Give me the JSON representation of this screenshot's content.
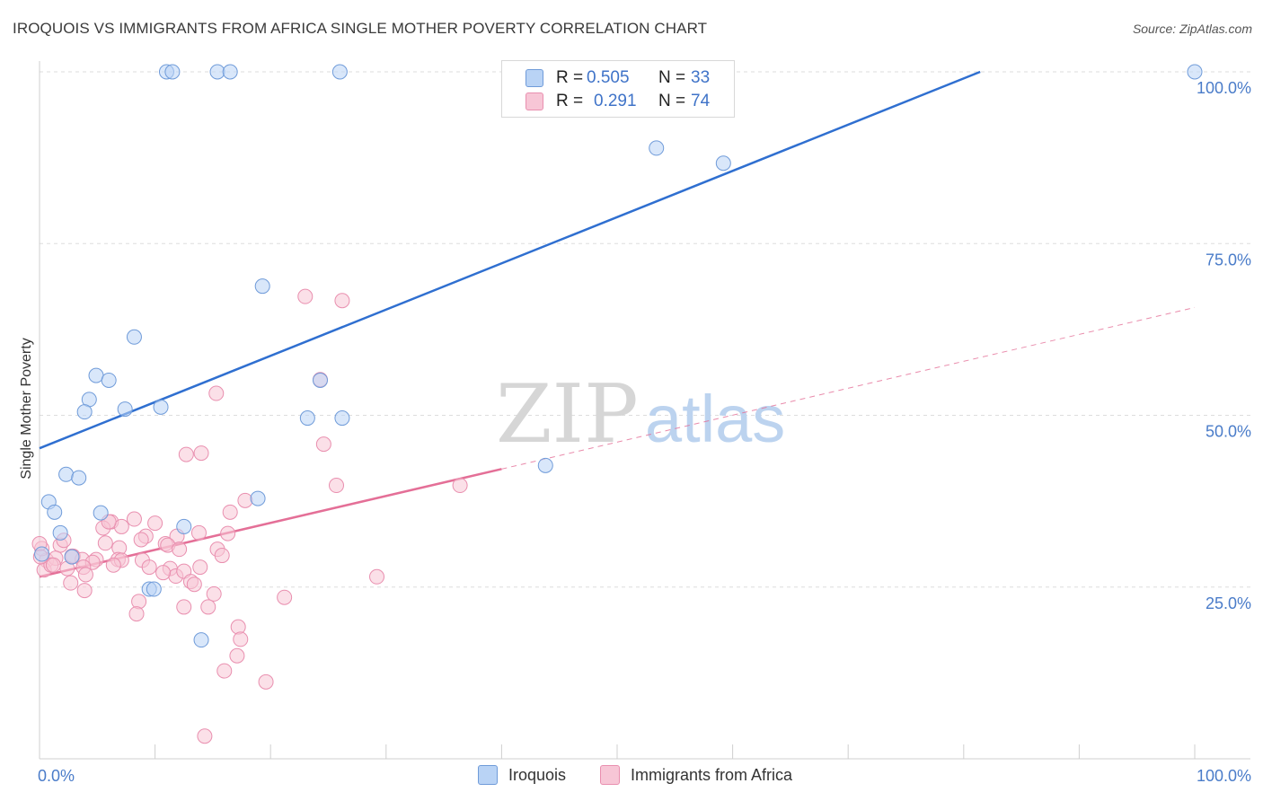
{
  "title": "IROQUOIS VS IMMIGRANTS FROM AFRICA SINGLE MOTHER POVERTY CORRELATION CHART",
  "source": "Source: ZipAtlas.com",
  "watermark": {
    "zip": "ZIP",
    "atlas": "atlas"
  },
  "colors": {
    "blue_fill": "#b9d3f5",
    "blue_stroke": "#6f9bd9",
    "blue_line": "#2f6fd0",
    "pink_fill": "#f7c6d6",
    "pink_stroke": "#e98faf",
    "pink_line": "#e46f97",
    "grid": "#dddddd",
    "tick_text": "#4a7cc9"
  },
  "legend": [
    {
      "label": "R =",
      "r_value": "0.505",
      "n_label": "N =",
      "n_value": "33"
    },
    {
      "label": "R =",
      "r_value": "0.291",
      "n_label": "N =",
      "n_value": "74"
    }
  ],
  "chart_data": {
    "type": "scatter",
    "title": "IROQUOIS VS IMMIGRANTS FROM AFRICA SINGLE MOTHER POVERTY CORRELATION CHART",
    "xlabel": "",
    "ylabel": "Single Mother Poverty",
    "xlim": [
      0,
      100
    ],
    "ylim": [
      0,
      100
    ],
    "x_tick_labels": [
      "0.0%",
      "100.0%"
    ],
    "y_tick_labels": [
      "25.0%",
      "50.0%",
      "75.0%",
      "100.0%"
    ],
    "y_ticks": [
      25,
      50,
      75,
      100
    ],
    "grid": true,
    "series": [
      {
        "name": "Iroquois",
        "color": "blue",
        "trend": {
          "x": [
            0,
            100
          ],
          "y": [
            45.2,
            112.5
          ],
          "dashed_from": null
        },
        "points": [
          [
            11,
            100
          ],
          [
            11.5,
            100
          ],
          [
            15.4,
            100
          ],
          [
            16.5,
            100
          ],
          [
            26,
            100
          ],
          [
            100,
            100
          ],
          [
            53.4,
            88.9
          ],
          [
            59.2,
            86.7
          ],
          [
            19.3,
            68.8
          ],
          [
            8.2,
            61.4
          ],
          [
            4.9,
            55.8
          ],
          [
            6.0,
            55.1
          ],
          [
            24.3,
            55.1
          ],
          [
            4.3,
            52.3
          ],
          [
            7.4,
            50.9
          ],
          [
            10.5,
            51.2
          ],
          [
            3.9,
            50.5
          ],
          [
            23.2,
            49.6
          ],
          [
            26.2,
            49.6
          ],
          [
            43.8,
            42.7
          ],
          [
            2.3,
            41.4
          ],
          [
            3.4,
            40.9
          ],
          [
            18.9,
            37.9
          ],
          [
            0.8,
            37.4
          ],
          [
            1.3,
            35.9
          ],
          [
            5.3,
            35.8
          ],
          [
            1.8,
            32.9
          ],
          [
            12.5,
            33.8
          ],
          [
            2.8,
            29.4
          ],
          [
            9.5,
            24.7
          ],
          [
            9.9,
            24.7
          ],
          [
            14,
            17.3
          ],
          [
            0.2,
            29.8
          ]
        ]
      },
      {
        "name": "Immigrants from Africa",
        "color": "pink",
        "trend": {
          "x": [
            0,
            100
          ],
          "y": [
            26.5,
            65.7
          ],
          "dashed_from": 40
        },
        "points": [
          [
            23,
            67.3
          ],
          [
            26.2,
            66.7
          ],
          [
            24.3,
            55.2
          ],
          [
            15.3,
            53.2
          ],
          [
            24.6,
            45.8
          ],
          [
            14,
            44.5
          ],
          [
            12.7,
            44.3
          ],
          [
            25.7,
            39.8
          ],
          [
            36.4,
            39.8
          ],
          [
            17.8,
            37.6
          ],
          [
            16.5,
            35.9
          ],
          [
            8.2,
            34.9
          ],
          [
            6.2,
            34.5
          ],
          [
            10,
            34.3
          ],
          [
            5.5,
            33.6
          ],
          [
            7.1,
            33.8
          ],
          [
            9.2,
            32.4
          ],
          [
            11.9,
            32.4
          ],
          [
            13.8,
            32.9
          ],
          [
            16.3,
            32.8
          ],
          [
            1.8,
            31.1
          ],
          [
            2.1,
            31.8
          ],
          [
            5.7,
            31.4
          ],
          [
            8.8,
            31.9
          ],
          [
            6.9,
            30.7
          ],
          [
            10.9,
            31.3
          ],
          [
            11.1,
            31.1
          ],
          [
            15.4,
            30.5
          ],
          [
            12.1,
            30.5
          ],
          [
            15.8,
            29.6
          ],
          [
            2.9,
            29.5
          ],
          [
            3.7,
            29.0
          ],
          [
            4.9,
            29.0
          ],
          [
            6.8,
            29.0
          ],
          [
            7.1,
            28.9
          ],
          [
            8.9,
            28.9
          ],
          [
            0.6,
            28.9
          ],
          [
            1.4,
            29.2
          ],
          [
            4.6,
            28.6
          ],
          [
            0.4,
            27.5
          ],
          [
            1.0,
            28.2
          ],
          [
            2.4,
            27.7
          ],
          [
            3.8,
            27.9
          ],
          [
            6.4,
            28.2
          ],
          [
            9.5,
            27.9
          ],
          [
            11.3,
            27.7
          ],
          [
            11.8,
            26.6
          ],
          [
            12.5,
            27.3
          ],
          [
            13.9,
            27.9
          ],
          [
            10.7,
            27.1
          ],
          [
            4.0,
            26.8
          ],
          [
            2.7,
            25.6
          ],
          [
            3.9,
            24.5
          ],
          [
            13.1,
            25.8
          ],
          [
            13.4,
            25.4
          ],
          [
            8.6,
            22.9
          ],
          [
            15.1,
            24.0
          ],
          [
            21.2,
            23.5
          ],
          [
            14.6,
            22.1
          ],
          [
            12.5,
            22.1
          ],
          [
            29.2,
            26.5
          ],
          [
            17.2,
            19.2
          ],
          [
            17.4,
            17.4
          ],
          [
            17.1,
            15.0
          ],
          [
            16.0,
            12.8
          ],
          [
            19.6,
            11.2
          ],
          [
            14.3,
            3.3
          ],
          [
            8.4,
            21.1
          ],
          [
            0.2,
            30.6
          ],
          [
            0.0,
            31.3
          ],
          [
            2.8,
            29.5
          ],
          [
            1.2,
            28.2
          ],
          [
            6.0,
            34.5
          ],
          [
            0.1,
            29.4
          ]
        ]
      }
    ]
  },
  "bottom_legend": [
    {
      "label": "Iroquois",
      "color": "blue"
    },
    {
      "label": "Immigrants from Africa",
      "color": "pink"
    }
  ]
}
